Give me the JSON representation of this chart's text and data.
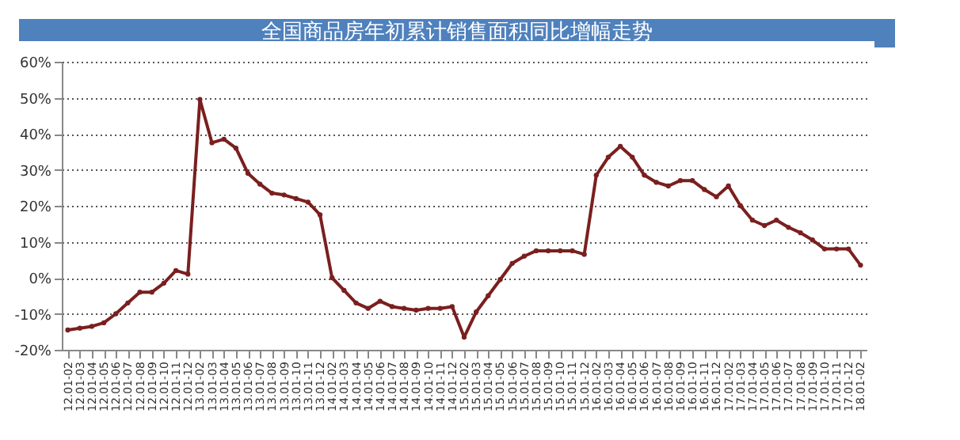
{
  "chart_data": {
    "type": "line",
    "title": "全国商品房年初累计销售面积同比增幅走势",
    "categories": [
      "12.01-02",
      "12.01-03",
      "12.01-04",
      "12.01-05",
      "12.01-06",
      "12.01-07",
      "12.01-08",
      "12.01-09",
      "12.01-10",
      "12.01-11",
      "12.01-12",
      "13.01-02",
      "13.01-03",
      "13.01-04",
      "13.01-05",
      "13.01-06",
      "13.01-07",
      "13.01-08",
      "13.01-09",
      "13.01-10",
      "13.01-11",
      "13.01-12",
      "14.01-02",
      "14.01-03",
      "14.01-04",
      "14.01-05",
      "14.01-06",
      "14.01-07",
      "14.01-08",
      "14.01-09",
      "14.01-10",
      "14.01-11",
      "14.01-12",
      "15.01-02",
      "15.01-03",
      "15.01-04",
      "15.01-05",
      "15.01-06",
      "15.01-07",
      "15.01-08",
      "15.01-09",
      "15.01-10",
      "15.01-11",
      "15.01-12",
      "16.01-02",
      "16.01-03",
      "16.01-04",
      "16.01-05",
      "16.01-06",
      "16.01-07",
      "16.01-08",
      "16.01-09",
      "16.01-10",
      "16.01-11",
      "16.01-12",
      "17.01-02",
      "17.01-03",
      "17.01-04",
      "17.01-05",
      "17.01-06",
      "17.01-07",
      "17.01-08",
      "17.01-09",
      "17.01-10",
      "17.01-11",
      "17.01-12",
      "18.01-02"
    ],
    "series": [
      {
        "color": "#7a1f1f",
        "values": [
          -14.5,
          -14,
          -13.5,
          -12.5,
          -10,
          -7,
          -4,
          -4,
          -1.5,
          2,
          1,
          49.5,
          37.5,
          38.5,
          36,
          29,
          26,
          23.5,
          23,
          22,
          21,
          17.5,
          0,
          -3.5,
          -7,
          -8.5,
          -6.5,
          -8,
          -8.5,
          -9,
          -8.5,
          -8.5,
          -8,
          -16.5,
          -9.5,
          -5,
          -0.5,
          4,
          6,
          7.5,
          7.5,
          7.5,
          7.5,
          6.5,
          28.5,
          33.5,
          36.5,
          33.5,
          28.5,
          26.5,
          25.5,
          27,
          27,
          24.5,
          22.5,
          25.5,
          20,
          16,
          14.5,
          16,
          14,
          12.5,
          10.5,
          8,
          8,
          8,
          3.5
        ]
      }
    ],
    "ylim": [
      -20,
      60
    ],
    "yticks": [
      {
        "value": -20,
        "label": "-20%"
      },
      {
        "value": -10,
        "label": "-10%"
      },
      {
        "value": 0,
        "label": "0%"
      },
      {
        "value": 10,
        "label": "10%"
      },
      {
        "value": 20,
        "label": "20%"
      },
      {
        "value": 30,
        "label": "30%"
      },
      {
        "value": 40,
        "label": "40%"
      },
      {
        "value": 50,
        "label": "50%"
      },
      {
        "value": 60,
        "label": "60%"
      }
    ],
    "grid": "y",
    "marker": "circle",
    "line_style": "solid"
  }
}
